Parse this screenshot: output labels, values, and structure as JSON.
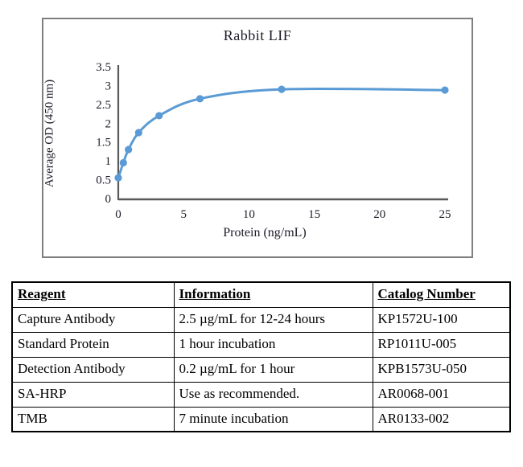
{
  "chart_data": {
    "type": "line",
    "title": "Rabbit LIF",
    "xlabel": "Protein (ng/mL)",
    "ylabel": "Average OD (450 nm)",
    "x": [
      0,
      0.39,
      0.78,
      1.56,
      3.125,
      6.25,
      12.5,
      25
    ],
    "y": [
      0.55,
      0.95,
      1.3,
      1.75,
      2.2,
      2.65,
      2.9,
      2.88
    ],
    "xlim": [
      0,
      25
    ],
    "ylim": [
      0,
      3.5
    ],
    "x_ticks": [
      0,
      5,
      10,
      15,
      20,
      25
    ],
    "y_ticks": [
      0,
      0.5,
      1,
      1.5,
      2,
      2.5,
      3,
      3.5
    ],
    "grid": false,
    "legend": null,
    "line_color": "#5b9bd5",
    "marker": "circle",
    "axis_color": "#595959",
    "text_color": "#1c1c28"
  },
  "table": {
    "headers": [
      "Reagent",
      "Information",
      "Catalog Number"
    ],
    "rows": [
      [
        "Capture Antibody",
        "2.5 µg/mL for 12-24 hours",
        "KP1572U-100"
      ],
      [
        "Standard Protein",
        "1 hour incubation",
        "RP1011U-005"
      ],
      [
        "Detection Antibody",
        "0.2 µg/mL for 1 hour",
        "KPB1573U-050"
      ],
      [
        "SA-HRP",
        "Use as recommended.",
        "AR0068-001"
      ],
      [
        "TMB",
        "7 minute incubation",
        "AR0133-002"
      ]
    ]
  }
}
